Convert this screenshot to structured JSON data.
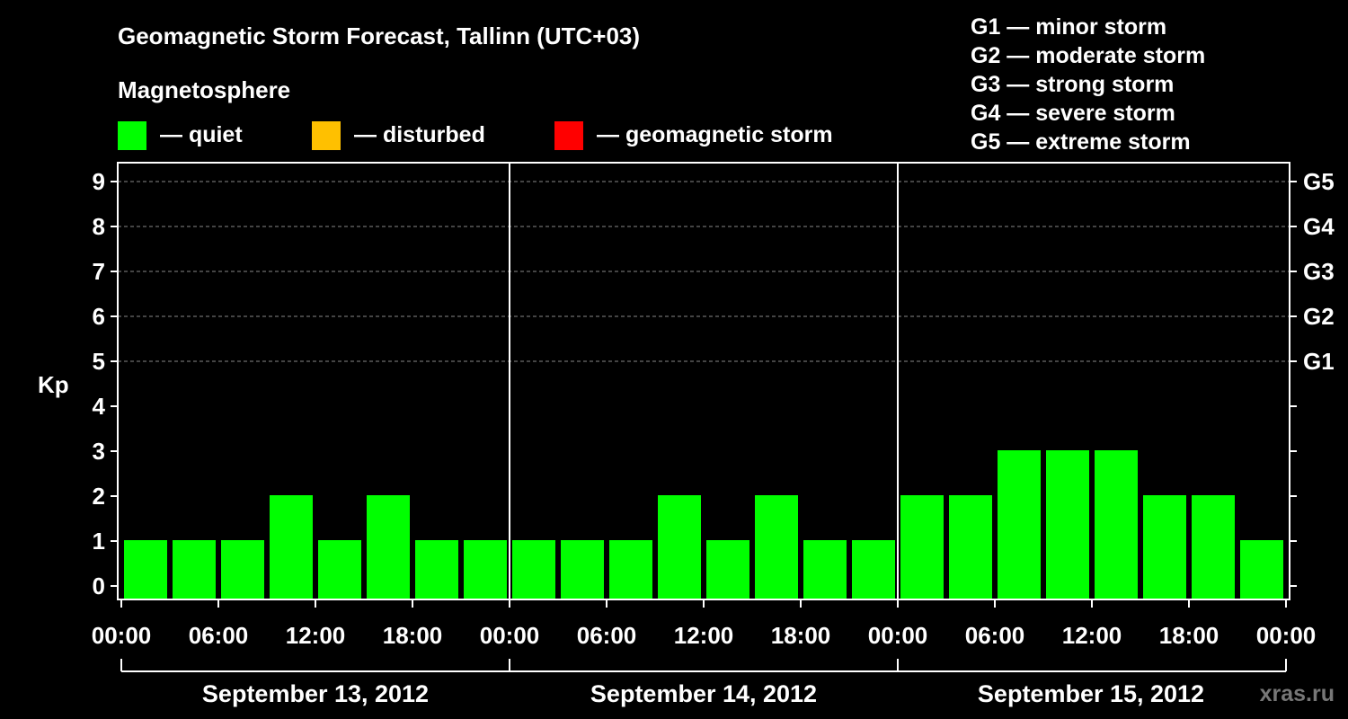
{
  "chart_data": {
    "type": "bar",
    "title": "Geomagnetic Storm Forecast, Tallinn (UTC+03)",
    "subtitle": "Magnetosphere",
    "ylabel": "Kp",
    "ylim": [
      0,
      9
    ],
    "yticks": [
      "0",
      "1",
      "2",
      "3",
      "4",
      "5",
      "6",
      "7",
      "8",
      "9"
    ],
    "right_ticks": [
      {
        "kp": 5,
        "label": "G1"
      },
      {
        "kp": 6,
        "label": "G2"
      },
      {
        "kp": 7,
        "label": "G3"
      },
      {
        "kp": 8,
        "label": "G4"
      },
      {
        "kp": 9,
        "label": "G5"
      }
    ],
    "grid": "dashed horizontal at Kp 5-9",
    "legend": [
      {
        "label": "— quiet",
        "color": "#00ff00"
      },
      {
        "label": "— disturbed",
        "color": "#ffc000"
      },
      {
        "label": "— geomagnetic storm",
        "color": "#ff0000"
      }
    ],
    "scale": [
      "G1 — minor storm",
      "G2 — moderate storm",
      "G3 — strong storm",
      "G4 — severe storm",
      "G5 — extreme storm"
    ],
    "xticks": [
      "00:00",
      "06:00",
      "12:00",
      "18:00",
      "00:00",
      "06:00",
      "12:00",
      "18:00",
      "00:00",
      "06:00",
      "12:00",
      "18:00",
      "00:00"
    ],
    "days": [
      "September 13, 2012",
      "September 14, 2012",
      "September 15, 2012"
    ],
    "bar_color": "#00ff00",
    "values": [
      1,
      1,
      1,
      2,
      1,
      2,
      1,
      1,
      1,
      1,
      1,
      2,
      1,
      2,
      1,
      1,
      2,
      2,
      3,
      3,
      3,
      2,
      2,
      1
    ],
    "interval_hours": 3
  },
  "watermark": "xras.ru"
}
